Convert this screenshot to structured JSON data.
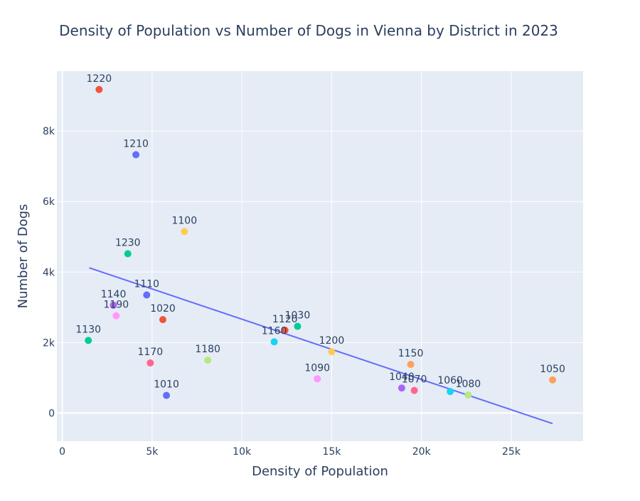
{
  "chart_data": {
    "type": "scatter",
    "title": "Density of Population vs Number of Dogs in Vienna by District in 2023",
    "xlabel": "Density of Population",
    "ylabel": "Number of Dogs",
    "xlim": [
      -300,
      29000
    ],
    "ylim": [
      -800,
      9700
    ],
    "x_ticks": [
      0,
      5000,
      10000,
      15000,
      20000,
      25000
    ],
    "x_tick_labels": [
      "0",
      "5k",
      "10k",
      "15k",
      "20k",
      "25k"
    ],
    "y_ticks": [
      0,
      2000,
      4000,
      6000,
      8000
    ],
    "y_tick_labels": [
      "0",
      "2k",
      "4k",
      "6k",
      "8k"
    ],
    "grid": true,
    "background": "#e5ecf6",
    "trendline": {
      "x": [
        1500,
        27300
      ],
      "y": [
        4120,
        -300
      ],
      "color": "#636efa"
    },
    "points": [
      {
        "label": "1010",
        "x": 5800,
        "y": 500,
        "color": "#636efa"
      },
      {
        "label": "1020",
        "x": 5600,
        "y": 2650,
        "color": "#ef553b"
      },
      {
        "label": "1030",
        "x": 13100,
        "y": 2460,
        "color": "#00cc96"
      },
      {
        "label": "1040",
        "x": 18900,
        "y": 710,
        "color": "#ab63fa"
      },
      {
        "label": "1050",
        "x": 27300,
        "y": 940,
        "color": "#ffa15a"
      },
      {
        "label": "1060",
        "x": 21600,
        "y": 610,
        "color": "#19d3f3"
      },
      {
        "label": "1070",
        "x": 19600,
        "y": 640,
        "color": "#ff6692"
      },
      {
        "label": "1080",
        "x": 22600,
        "y": 510,
        "color": "#b6e880"
      },
      {
        "label": "1090",
        "x": 14200,
        "y": 970,
        "color": "#ff97ff"
      },
      {
        "label": "1100",
        "x": 6800,
        "y": 5150,
        "color": "#fecb52"
      },
      {
        "label": "1110",
        "x": 4700,
        "y": 3350,
        "color": "#636efa"
      },
      {
        "label": "1120",
        "x": 12400,
        "y": 2350,
        "color": "#ef553b"
      },
      {
        "label": "1130",
        "x": 1450,
        "y": 2060,
        "color": "#00cc96"
      },
      {
        "label": "1140",
        "x": 2850,
        "y": 3060,
        "color": "#ab63fa"
      },
      {
        "label": "1150",
        "x": 19400,
        "y": 1380,
        "color": "#ffa15a"
      },
      {
        "label": "1160",
        "x": 11800,
        "y": 2020,
        "color": "#19d3f3"
      },
      {
        "label": "1170",
        "x": 4900,
        "y": 1420,
        "color": "#ff6692"
      },
      {
        "label": "1180",
        "x": 8100,
        "y": 1500,
        "color": "#b6e880"
      },
      {
        "label": "1190",
        "x": 3000,
        "y": 2760,
        "color": "#ff97ff"
      },
      {
        "label": "1200",
        "x": 15000,
        "y": 1740,
        "color": "#fecb52"
      },
      {
        "label": "1210",
        "x": 4100,
        "y": 7330,
        "color": "#636efa"
      },
      {
        "label": "1220",
        "x": 2050,
        "y": 9180,
        "color": "#ef553b"
      },
      {
        "label": "1230",
        "x": 3650,
        "y": 4520,
        "color": "#00cc96"
      }
    ]
  }
}
